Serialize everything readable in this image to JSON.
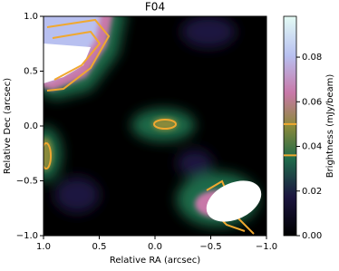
{
  "chart_data": {
    "type": "image",
    "title": "F04",
    "xlabel": "Relative RA (arcsec)",
    "ylabel": "Relative Dec (arcsec)",
    "xlim": [
      1.0,
      -1.0
    ],
    "ylim": [
      -1.0,
      1.0
    ],
    "xticks": [
      {
        "value": 1,
        "label": "1.0"
      },
      {
        "value": 0.5,
        "label": "0.5"
      },
      {
        "value": 0,
        "label": "0.0"
      },
      {
        "value": -0.5,
        "label": "−0.5"
      },
      {
        "value": -1,
        "label": "−1.0"
      }
    ],
    "yticks": [
      {
        "value": -1,
        "label": "−1.0"
      },
      {
        "value": -0.5,
        "label": "−0.5"
      },
      {
        "value": 0,
        "label": "0.0"
      },
      {
        "value": 0.5,
        "label": "0.5"
      },
      {
        "value": 1,
        "label": "1.0"
      }
    ],
    "colorbar": {
      "label": "Brightness (mJy/beam)",
      "clim": [
        0,
        0.0983
      ],
      "ticks": [
        {
          "value": 0,
          "label": "0.00"
        },
        {
          "value": 0.02,
          "label": "0.02"
        },
        {
          "value": 0.04,
          "label": "0.04"
        },
        {
          "value": 0.06,
          "label": "0.06"
        },
        {
          "value": 0.08,
          "label": "0.08"
        }
      ],
      "contour_levels": [
        0.036,
        0.05
      ],
      "contour_color": "#f0a830"
    }
  }
}
